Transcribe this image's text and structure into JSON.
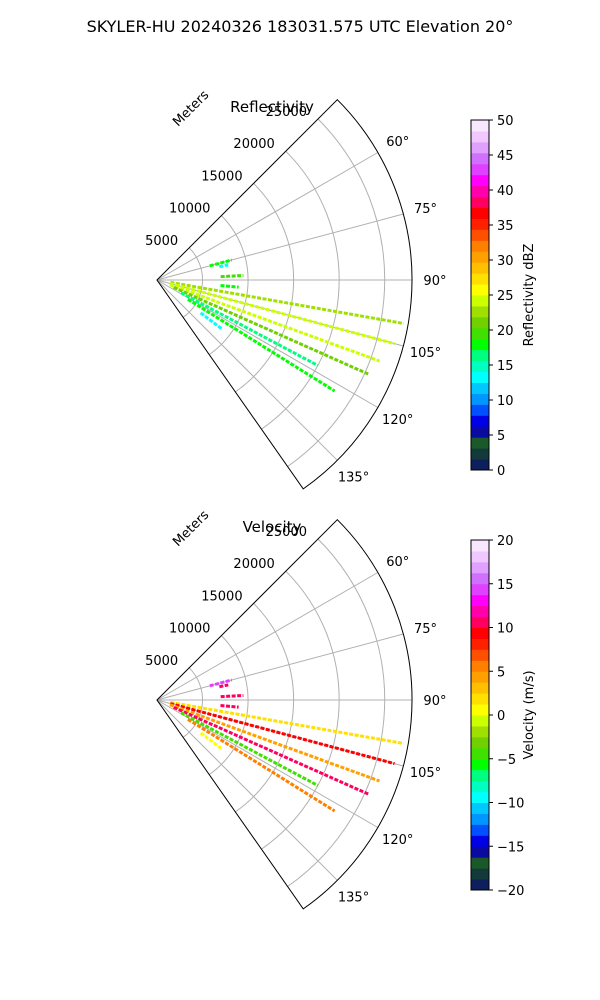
{
  "suptitle": "SKYLER-HU  20240326  183031.575 UTC Elevation 20°",
  "chart_data": [
    {
      "type": "sector-ppi",
      "title": "Reflectivity",
      "range_label": "Meters",
      "range_max": 28000,
      "range_ticks": [
        5000,
        10000,
        15000,
        20000,
        25000
      ],
      "range_tick_labels": [
        "5000",
        "10000",
        "15000",
        "20000",
        "25000"
      ],
      "theta_min_deg": 45,
      "theta_max_deg": 145,
      "angle_ticks": [
        60,
        75,
        90,
        105,
        120,
        135
      ],
      "angle_tick_labels": [
        "60°",
        "75°",
        "90°",
        "105°",
        "120°",
        "135°"
      ],
      "grid": true,
      "colorbar": {
        "label": "Reflectivity dBZ",
        "min": 0,
        "max": 50,
        "ticks": [
          0,
          5,
          10,
          15,
          20,
          25,
          30,
          35,
          40,
          45,
          50
        ],
        "tick_labels": [
          "0",
          "5",
          "10",
          "15",
          "20",
          "25",
          "30",
          "35",
          "40",
          "45",
          "50"
        ],
        "colors": [
          "#0d1f5c",
          "#123a3a",
          "#1a5a2a",
          "#0a0aa0",
          "#0000e6",
          "#0050ff",
          "#0096ff",
          "#00c8ff",
          "#00ffff",
          "#00ffc0",
          "#00ff80",
          "#00ff00",
          "#40e000",
          "#70d000",
          "#a0e000",
          "#ccff00",
          "#ffff00",
          "#ffe000",
          "#ffc000",
          "#ffa000",
          "#ff8000",
          "#ff5000",
          "#ff2000",
          "#ff0000",
          "#ff0060",
          "#ff00aa",
          "#ff00ff",
          "#e040ff",
          "#d070ff",
          "#e0a0ff",
          "#f0c8ff",
          "#f8e8ff"
        ]
      },
      "rays": [
        {
          "angle_deg": 100,
          "r0": 1500,
          "r1": 27500,
          "value": 22
        },
        {
          "angle_deg": 105,
          "r0": 1500,
          "r1": 27000,
          "value": 24
        },
        {
          "angle_deg": 110,
          "r0": 1500,
          "r1": 26000,
          "value": 24
        },
        {
          "angle_deg": 114,
          "r0": 2000,
          "r1": 25500,
          "value": 21
        },
        {
          "angle_deg": 118,
          "r0": 3000,
          "r1": 20000,
          "value": 16
        },
        {
          "angle_deg": 122,
          "r0": 4000,
          "r1": 23000,
          "value": 18
        },
        {
          "angle_deg": 127,
          "r0": 6000,
          "r1": 9000,
          "value": 14
        },
        {
          "angle_deg": 75,
          "r0": 6000,
          "r1": 8500,
          "value": 18
        },
        {
          "angle_deg": 78,
          "r0": 7000,
          "r1": 8000,
          "value": 13
        },
        {
          "angle_deg": 87,
          "r0": 7000,
          "r1": 9500,
          "value": 20
        },
        {
          "angle_deg": 95,
          "r0": 7000,
          "r1": 9000,
          "value": 18
        }
      ]
    },
    {
      "type": "sector-ppi",
      "title": "Velocity",
      "range_label": "Meters",
      "range_max": 28000,
      "range_ticks": [
        5000,
        10000,
        15000,
        20000,
        25000
      ],
      "range_tick_labels": [
        "5000",
        "10000",
        "15000",
        "20000",
        "25000"
      ],
      "theta_min_deg": 45,
      "theta_max_deg": 145,
      "angle_ticks": [
        60,
        75,
        90,
        105,
        120,
        135
      ],
      "angle_tick_labels": [
        "60°",
        "75°",
        "90°",
        "105°",
        "120°",
        "135°"
      ],
      "grid": true,
      "colorbar": {
        "label": "Velocity (m/s)",
        "min": -20,
        "max": 20,
        "ticks": [
          -20,
          -15,
          -10,
          -5,
          0,
          5,
          10,
          15,
          20
        ],
        "tick_labels": [
          "−20",
          "−15",
          "−10",
          "−5",
          "0",
          "5",
          "10",
          "15",
          "20"
        ],
        "colors": [
          "#0d1f5c",
          "#123a3a",
          "#1a5a2a",
          "#0a0aa0",
          "#0000e6",
          "#0050ff",
          "#0096ff",
          "#00c8ff",
          "#00ffff",
          "#00ffc0",
          "#00ff80",
          "#00ff00",
          "#40e000",
          "#70d000",
          "#a0e000",
          "#ccff00",
          "#ffff00",
          "#ffe000",
          "#ffc000",
          "#ffa000",
          "#ff8000",
          "#ff5000",
          "#ff2000",
          "#ff0000",
          "#ff0060",
          "#ff00aa",
          "#ff00ff",
          "#e040ff",
          "#d070ff",
          "#e0a0ff",
          "#f0c8ff",
          "#f8e8ff"
        ]
      },
      "rays": [
        {
          "angle_deg": 100,
          "r0": 1500,
          "r1": 27500,
          "value": 2
        },
        {
          "angle_deg": 105,
          "r0": 1500,
          "r1": 27000,
          "value": 9
        },
        {
          "angle_deg": 110,
          "r0": 1500,
          "r1": 26000,
          "value": 4
        },
        {
          "angle_deg": 114,
          "r0": 2000,
          "r1": 25500,
          "value": 11
        },
        {
          "angle_deg": 118,
          "r0": 3000,
          "r1": 20000,
          "value": -4
        },
        {
          "angle_deg": 122,
          "r0": 4000,
          "r1": 23000,
          "value": 6
        },
        {
          "angle_deg": 127,
          "r0": 6000,
          "r1": 9000,
          "value": 1
        },
        {
          "angle_deg": 75,
          "r0": 6000,
          "r1": 8500,
          "value": 14
        },
        {
          "angle_deg": 78,
          "r0": 7000,
          "r1": 8000,
          "value": 11
        },
        {
          "angle_deg": 87,
          "r0": 7000,
          "r1": 9500,
          "value": 10
        },
        {
          "angle_deg": 95,
          "r0": 7000,
          "r1": 9000,
          "value": 11
        }
      ]
    }
  ]
}
